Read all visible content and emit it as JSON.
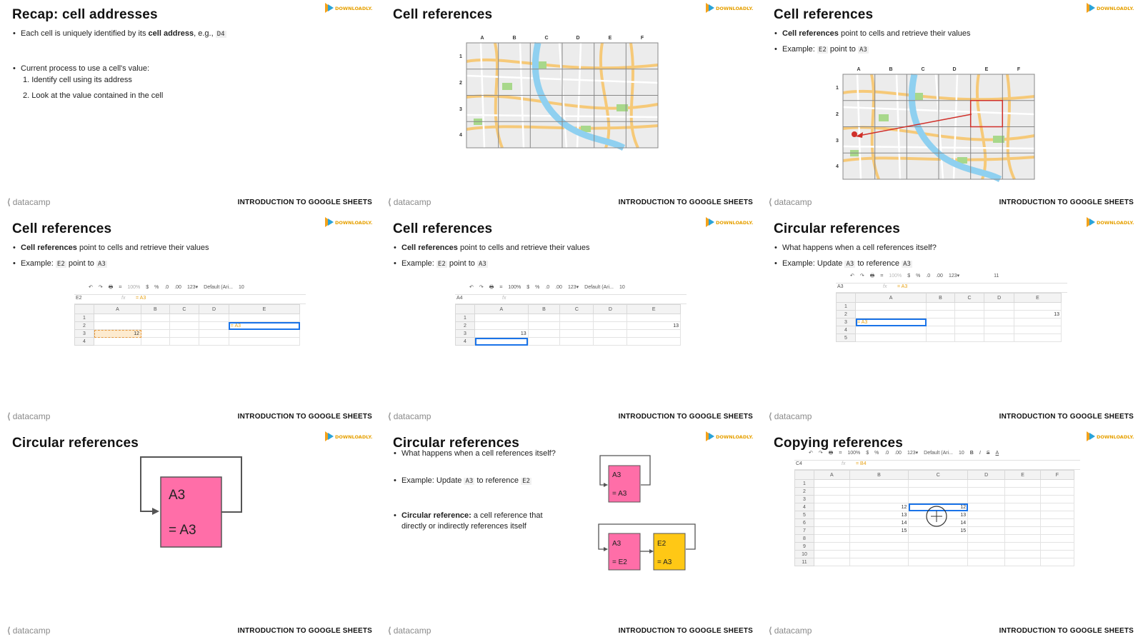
{
  "footer": {
    "brand": "datacamp",
    "course": "INTRODUCTION TO GOOGLE SHEETS"
  },
  "badge_text": "DOWNLOADLY.IR",
  "colors": {
    "pink": "#ff6ea8",
    "yellow": "#ffc815",
    "river": "#8fd0f0",
    "red": "#d0302a",
    "select": "#1a73e8"
  },
  "slides": [
    {
      "title": "Recap: cell addresses",
      "b1_pre": "Each cell is uniquely identified by its ",
      "b1_bold": "cell address",
      "b1_post": ", e.g., ",
      "b1_code": "D4",
      "b2": "Current process to use a cell's value:",
      "n1": "1.  Identify cell using its address",
      "n2": "2.  Look at the value contained in the cell"
    },
    {
      "title": "Cell references",
      "cols": [
        "A",
        "B",
        "C",
        "D",
        "E",
        "F"
      ],
      "rows": [
        "1",
        "2",
        "3",
        "4"
      ]
    },
    {
      "title": "Cell references",
      "b1_bold": "Cell references",
      "b1_post": " point to cells and retrieve their values",
      "b2_pre": "Example: ",
      "b2_code1": "E2",
      "b2_mid": " point to ",
      "b2_code2": "A3",
      "cols": [
        "A",
        "B",
        "C",
        "D",
        "E",
        "F"
      ],
      "rows": [
        "1",
        "2",
        "3",
        "4"
      ]
    },
    {
      "title": "Cell references",
      "b1_bold": "Cell references",
      "b1_post": " point to cells and retrieve their values",
      "b2_pre": "Example: ",
      "b2_code1": "E2",
      "b2_mid": " point to ",
      "b2_code2": "A3",
      "toolbar": [
        "↶",
        "↷",
        "🖶",
        "⌗",
        "100%",
        "$",
        "%",
        ".0",
        ".00",
        "123▾",
        "Default (Ari...",
        "10"
      ],
      "namebox": "E2",
      "formula": "= A3",
      "cols": [
        "A",
        "B",
        "C",
        "D",
        "E"
      ],
      "rows": [
        "1",
        "2",
        "3",
        "4"
      ],
      "cell_a3": "12",
      "cell_e2": "= A3"
    },
    {
      "title": "Cell references",
      "b1_bold": "Cell references",
      "b1_post": " point to cells and retrieve their values",
      "b2_pre": "Example: ",
      "b2_code1": "E2",
      "b2_mid": " point to ",
      "b2_code2": "A3",
      "toolbar": [
        "↶",
        "↷",
        "🖶",
        "⌗",
        "100%",
        "$",
        "%",
        ".0",
        ".00",
        "123▾",
        "Default (Ari...",
        "10"
      ],
      "namebox": "A4",
      "formula": "",
      "cols": [
        "A",
        "B",
        "C",
        "D",
        "E"
      ],
      "rows": [
        "1",
        "2",
        "3",
        "4"
      ],
      "cell_a3": "13",
      "cell_e2": "13"
    },
    {
      "title": "Circular references",
      "b1": "What happens when a cell references itself?",
      "b2_pre": "Example: Update ",
      "b2_code1": "A3",
      "b2_mid": " to reference ",
      "b2_code2": "A3",
      "toolbar": [
        "↶",
        "↷",
        "🖶",
        "⌗",
        "100%",
        "$",
        "%",
        ".0",
        ".00",
        "123▾",
        "",
        "11"
      ],
      "namebox": "A3",
      "formula": "= A3",
      "cols": [
        "A",
        "B",
        "C",
        "D",
        "E"
      ],
      "rows": [
        "1",
        "2",
        "3",
        "4",
        "5"
      ],
      "cell_e2": "13",
      "cell_a3": "= A3"
    },
    {
      "title": "Circular references",
      "box_l1": "A3",
      "box_l2": "= A3"
    },
    {
      "title": "Circular references",
      "b1": "What happens when a cell references itself?",
      "b2_pre": "Example: Update ",
      "b2_code1": "A3",
      "b2_mid": " to reference ",
      "b2_code2": "E2",
      "b3_bold": "Circular reference:",
      "b3_post": " a cell reference that directly or indirectly references itself",
      "box1_l1": "A3",
      "box1_l2": "= A3",
      "box2_l1": "A3",
      "box2_l2": "= E2",
      "box3_l1": "E2",
      "box3_l2": "= A3"
    },
    {
      "title": "Copying references",
      "toolbar": [
        "↶",
        "↷",
        "🖶",
        "⌗",
        "100%",
        "$",
        "%",
        ".0",
        ".00",
        "123▾",
        "Default (Ari...",
        "10",
        "B",
        "I",
        "S",
        "A"
      ],
      "namebox": "C4",
      "formula": "= B4",
      "cols": [
        "A",
        "B",
        "C",
        "D",
        "E",
        "F"
      ],
      "rows": [
        "1",
        "2",
        "3",
        "4",
        "5",
        "6",
        "7",
        "8",
        "9",
        "10",
        "11"
      ],
      "colB": [
        "12",
        "13",
        "14",
        "15"
      ],
      "colC": [
        "12",
        "13",
        "14",
        "15"
      ]
    }
  ]
}
